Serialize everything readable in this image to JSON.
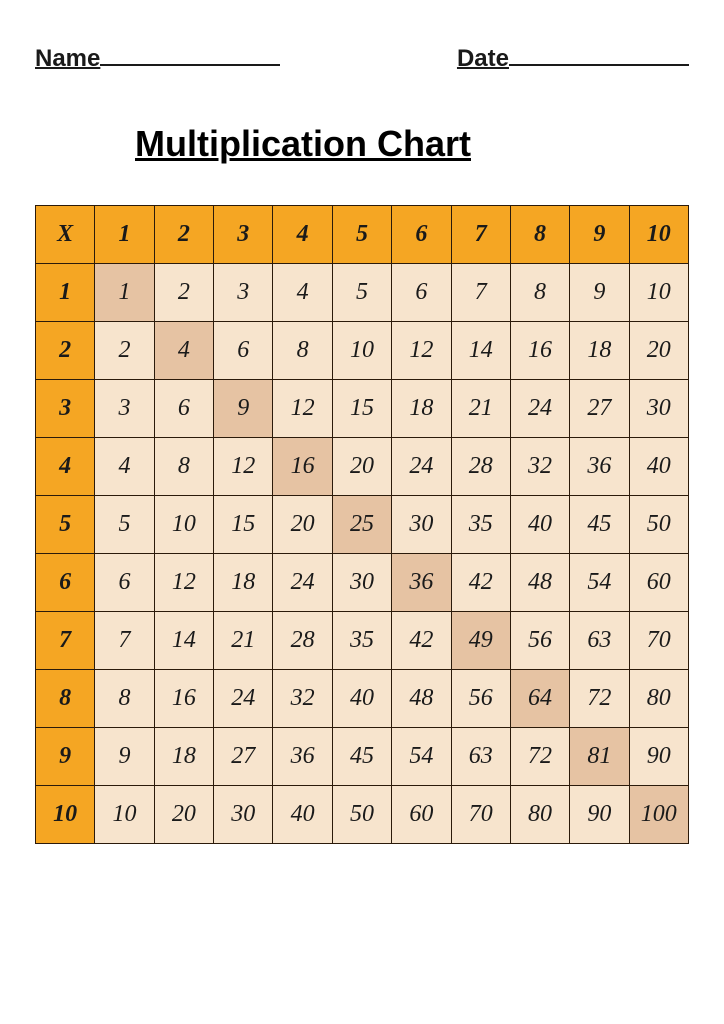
{
  "worksheet": {
    "name_label": "Name",
    "date_label": "Date",
    "title": "Multiplication Chart"
  },
  "chart": {
    "type": "table",
    "corner_label": "X",
    "col_headers": [
      "1",
      "2",
      "3",
      "4",
      "5",
      "6",
      "7",
      "8",
      "9",
      "10"
    ],
    "row_headers": [
      "1",
      "2",
      "3",
      "4",
      "5",
      "6",
      "7",
      "8",
      "9",
      "10"
    ],
    "rows": [
      [
        "1",
        "2",
        "3",
        "4",
        "5",
        "6",
        "7",
        "8",
        "9",
        "10"
      ],
      [
        "2",
        "4",
        "6",
        "8",
        "10",
        "12",
        "14",
        "16",
        "18",
        "20"
      ],
      [
        "3",
        "6",
        "9",
        "12",
        "15",
        "18",
        "21",
        "24",
        "27",
        "30"
      ],
      [
        "4",
        "8",
        "12",
        "16",
        "20",
        "24",
        "28",
        "32",
        "36",
        "40"
      ],
      [
        "5",
        "10",
        "15",
        "20",
        "25",
        "30",
        "35",
        "40",
        "45",
        "50"
      ],
      [
        "6",
        "12",
        "18",
        "24",
        "30",
        "36",
        "42",
        "48",
        "54",
        "60"
      ],
      [
        "7",
        "14",
        "21",
        "28",
        "35",
        "42",
        "49",
        "56",
        "63",
        "70"
      ],
      [
        "8",
        "16",
        "24",
        "32",
        "40",
        "48",
        "56",
        "64",
        "72",
        "80"
      ],
      [
        "9",
        "18",
        "27",
        "36",
        "45",
        "54",
        "63",
        "72",
        "81",
        "90"
      ],
      [
        "10",
        "20",
        "30",
        "40",
        "50",
        "60",
        "70",
        "80",
        "90",
        "100"
      ]
    ],
    "colors": {
      "header_bg": "#f5a623",
      "rowheader_bg": "#f5a623",
      "cell_bg": "#f7e4cd",
      "diagonal_bg": "#e6c3a3",
      "border": "#2b1a0a",
      "text": "#1a1a1a"
    },
    "header_fontsize": 26,
    "cell_fontsize": 24,
    "header_font_family": "Arial Black",
    "cell_font_family": "Brush Script MT"
  }
}
